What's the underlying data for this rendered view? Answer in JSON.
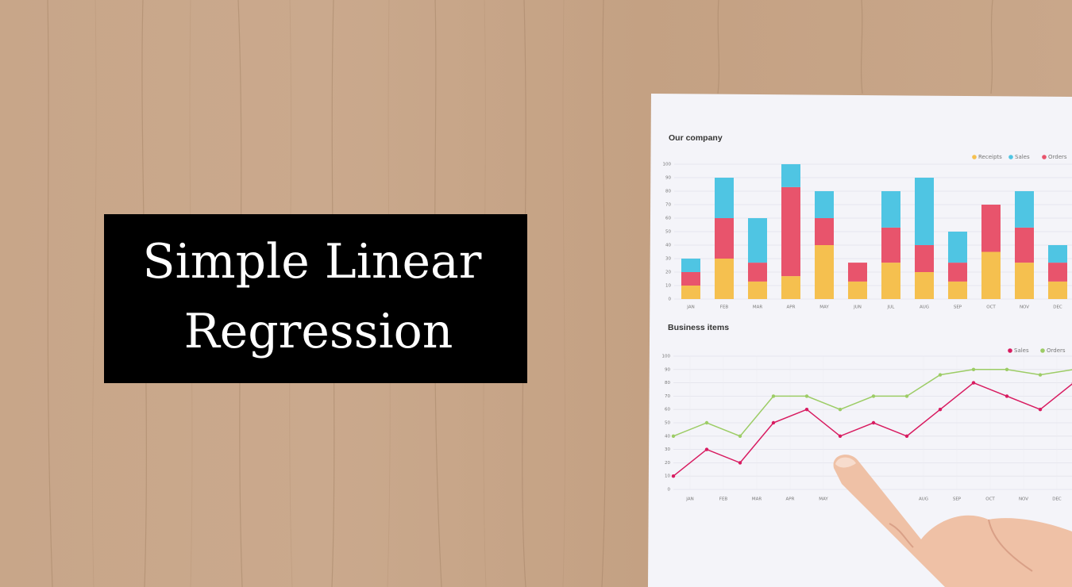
{
  "banner": {
    "lines": [
      "Simple Linear",
      "Regression"
    ]
  },
  "chart_data": [
    {
      "type": "bar",
      "title": "Our company",
      "categories": [
        "JAN",
        "FEB",
        "MAR",
        "APR",
        "MAY",
        "JUN",
        "JUL",
        "AUG",
        "SEP",
        "OCT",
        "NOV",
        "DEC"
      ],
      "stacked": true,
      "series": [
        {
          "name": "Receipts",
          "color": "#f5c04f",
          "values": [
            10,
            30,
            13,
            17,
            40,
            13,
            27,
            20,
            13,
            35,
            27,
            13
          ]
        },
        {
          "name": "Orders",
          "color": "#e8546c",
          "values": [
            10,
            30,
            14,
            66,
            20,
            14,
            26,
            20,
            14,
            35,
            26,
            14
          ]
        },
        {
          "name": "Sales",
          "color": "#4fc5e3",
          "values": [
            10,
            30,
            33,
            17,
            20,
            0,
            27,
            50,
            23,
            0,
            27,
            13
          ]
        }
      ],
      "legend_order": [
        0,
        2,
        1
      ],
      "ylim": [
        0,
        100
      ],
      "yticks": [
        0,
        10,
        20,
        30,
        40,
        50,
        60,
        70,
        80,
        90,
        100
      ],
      "grid": true
    },
    {
      "type": "line",
      "title": "Business items",
      "x": [
        0,
        1,
        2,
        3,
        4,
        5,
        6,
        7,
        8,
        9,
        10,
        11,
        12
      ],
      "series": [
        {
          "name": "Sales",
          "color": "#d81b60",
          "values": [
            10,
            30,
            20,
            50,
            60,
            40,
            50,
            40,
            60,
            80,
            70,
            60,
            80
          ]
        },
        {
          "name": "Orders",
          "color": "#9ccc65",
          "values": [
            40,
            50,
            40,
            70,
            70,
            60,
            70,
            70,
            86,
            90,
            90,
            86,
            90
          ]
        }
      ],
      "xlim": [
        0,
        12
      ],
      "xticks": [
        {
          "value": 0.5,
          "label": "JAN"
        },
        {
          "value": 1.5,
          "label": "FEB"
        },
        {
          "value": 2.5,
          "label": "MAR"
        },
        {
          "value": 3.5,
          "label": "APR"
        },
        {
          "value": 4.5,
          "label": "MAY"
        },
        {
          "value": 7.5,
          "label": "AUG"
        },
        {
          "value": 8.5,
          "label": "SEP"
        },
        {
          "value": 9.5,
          "label": "OCT"
        },
        {
          "value": 10.5,
          "label": "NOV"
        },
        {
          "value": 11.5,
          "label": "DEC"
        }
      ],
      "ylim": [
        0,
        100
      ],
      "yticks": [
        0,
        10,
        20,
        30,
        40,
        50,
        60,
        70,
        80,
        90,
        100
      ],
      "grid": true
    }
  ]
}
